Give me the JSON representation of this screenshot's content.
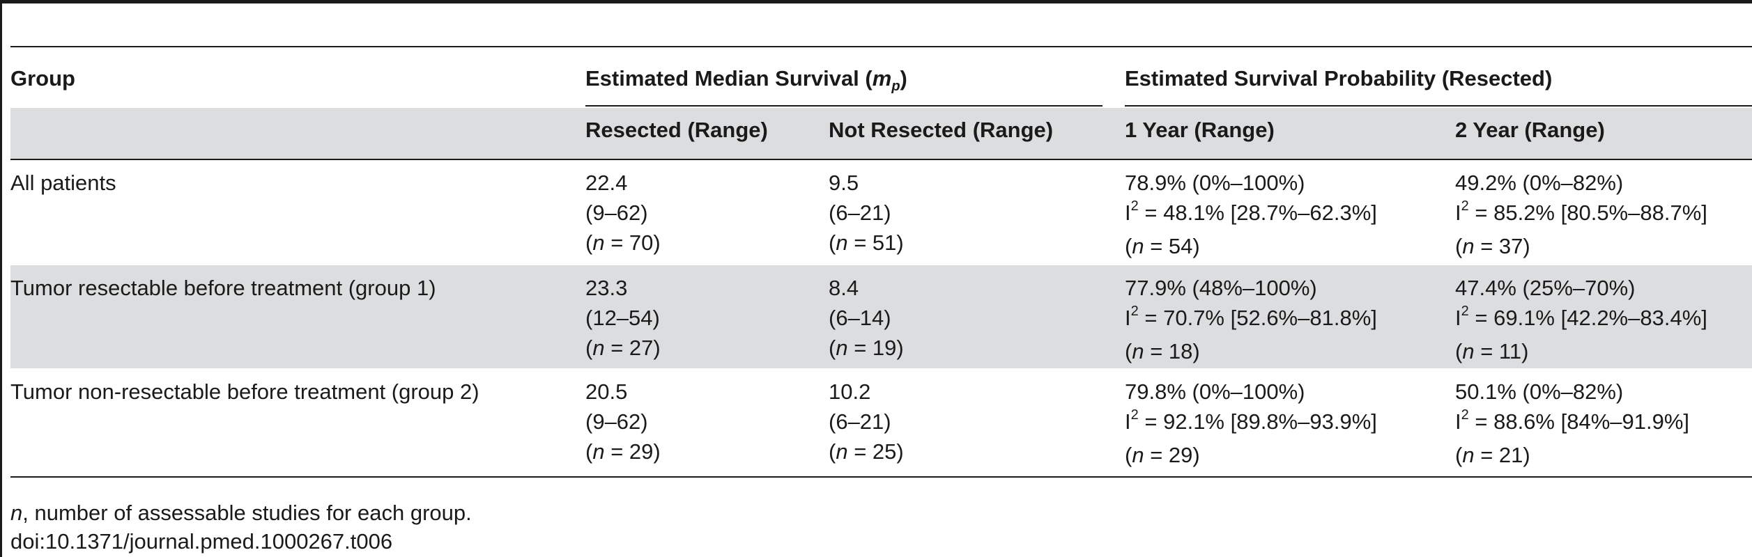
{
  "header": {
    "group": "Group",
    "median_survival": {
      "label": "Estimated Median Survival (",
      "sym": "m",
      "sub": "p",
      "close": ")"
    },
    "survival_prob": "Estimated Survival Probability (Resected)",
    "resected": "Resected (Range)",
    "not_resected": "Not Resected (Range)",
    "one_year": "1 Year (Range)",
    "two_year": "2 Year (Range)"
  },
  "rows": [
    {
      "group": "All patients",
      "resected": [
        "22.4",
        "(9–62)",
        "70"
      ],
      "not_resected": [
        "9.5",
        "(6–21)",
        "51"
      ],
      "one_year": [
        "78.9% (0%–100%)",
        "48.1% [28.7%–62.3%]",
        "54"
      ],
      "two_year": [
        "49.2% (0%–82%)",
        "85.2% [80.5%–88.7%]",
        "37"
      ]
    },
    {
      "group": "Tumor resectable before treatment (group 1)",
      "resected": [
        "23.3",
        "(12–54)",
        "27"
      ],
      "not_resected": [
        "8.4",
        "(6–14)",
        "19"
      ],
      "one_year": [
        "77.9% (48%–100%)",
        "70.7% [52.6%–81.8%]",
        "18"
      ],
      "two_year": [
        "47.4% (25%–70%)",
        "69.1% [42.2%–83.4%]",
        "11"
      ]
    },
    {
      "group": "Tumor non-resectable before treatment (group 2)",
      "resected": [
        "20.5",
        "(9–62)",
        "29"
      ],
      "not_resected": [
        "10.2",
        "(6–21)",
        "25"
      ],
      "one_year": [
        "79.8% (0%–100%)",
        "92.1% [89.8%–93.9%]",
        "29"
      ],
      "two_year": [
        "50.1% (0%–82%)",
        "88.6% [84%–91.9%]",
        "21"
      ]
    }
  ],
  "footer": {
    "n_sym": "n",
    "n_note": ", number of assessable studies for each group.",
    "doi": "doi:10.1371/journal.pmed.1000267.t006"
  }
}
